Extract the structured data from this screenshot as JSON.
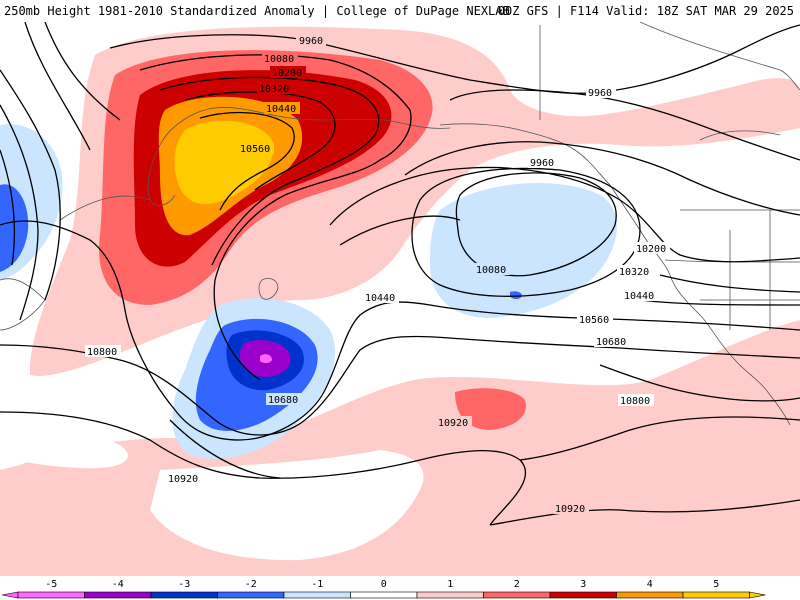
{
  "header": {
    "title": "250mb Height 1981-2010 Standardized Anomaly | College of DuPage NEXLAB",
    "run_info": "00Z GFS | F114 Valid: 18Z SAT MAR 29 2025"
  },
  "colors": {
    "neg5": "#ff66ff",
    "neg4": "#9900cc",
    "neg3": "#0033cc",
    "neg2": "#3366ff",
    "neg1": "#cce5ff",
    "pos1": "#ffcccc",
    "pos2": "#ff6666",
    "pos3": "#cc0000",
    "pos4": "#ff9900",
    "pos5": "#ffcc00"
  },
  "contour_labels": [
    {
      "id": "c9960a",
      "text": "9960"
    },
    {
      "id": "c10080a",
      "text": "10080"
    },
    {
      "id": "c10200a",
      "text": "10200"
    },
    {
      "id": "c10320a",
      "text": "10320"
    },
    {
      "id": "c10440a",
      "text": "10440"
    },
    {
      "id": "c10560a",
      "text": "10560"
    },
    {
      "id": "c9960b",
      "text": "9960"
    },
    {
      "id": "c9960c",
      "text": "9960"
    },
    {
      "id": "c10080b",
      "text": "10080"
    },
    {
      "id": "c10200b",
      "text": "10200"
    },
    {
      "id": "c10320b",
      "text": "10320"
    },
    {
      "id": "c10440b",
      "text": "10440"
    },
    {
      "id": "c10440c",
      "text": "10440"
    },
    {
      "id": "c10560b",
      "text": "10560"
    },
    {
      "id": "c10680a",
      "text": "10680"
    },
    {
      "id": "c10680b",
      "text": "10680"
    },
    {
      "id": "c10800a",
      "text": "10800"
    },
    {
      "id": "c10800b",
      "text": "10800"
    },
    {
      "id": "c10920a",
      "text": "10920"
    },
    {
      "id": "c10920b",
      "text": "10920"
    },
    {
      "id": "c10920c",
      "text": "10920"
    }
  ],
  "colorbar": {
    "ticks": [
      "-5",
      "-4",
      "-3",
      "-2",
      "-1",
      "0",
      "1",
      "2",
      "3",
      "4",
      "5"
    ]
  }
}
